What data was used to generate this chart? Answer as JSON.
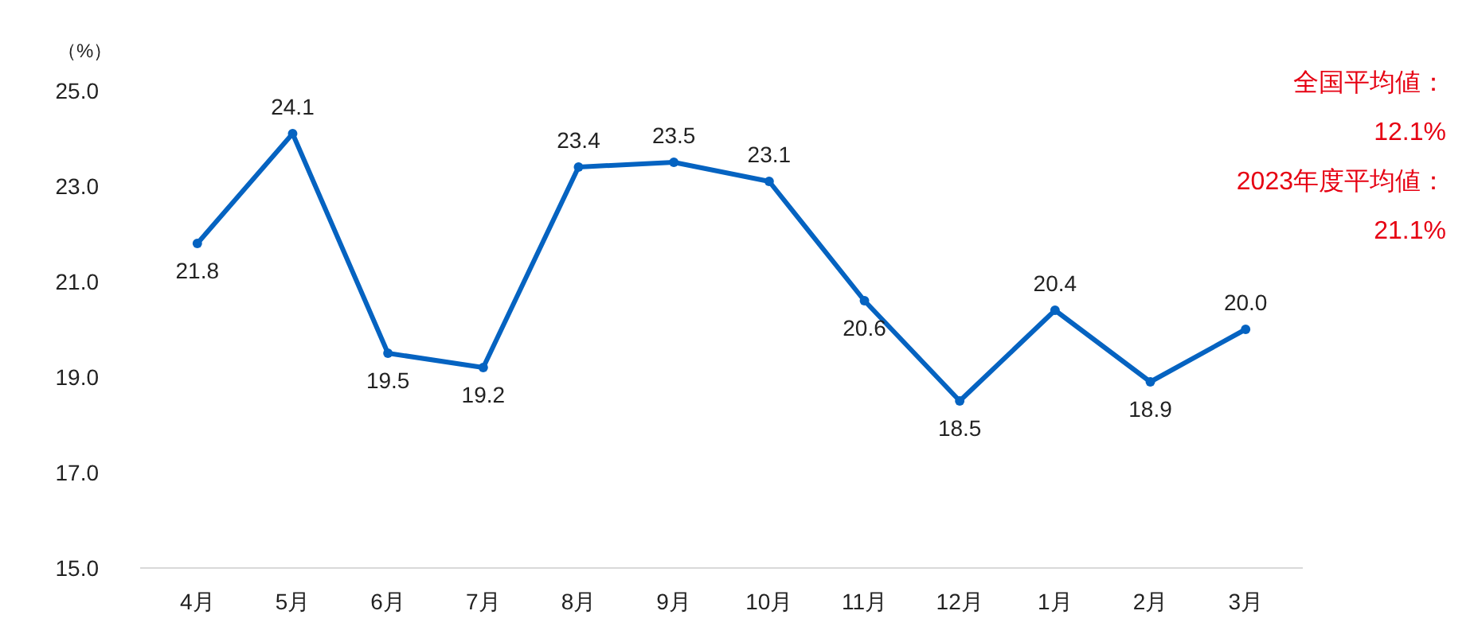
{
  "chart_data": {
    "type": "line",
    "ylabel": "（%）",
    "categories": [
      "4月",
      "5月",
      "6月",
      "7月",
      "8月",
      "9月",
      "10月",
      "11月",
      "12月",
      "1月",
      "2月",
      "3月"
    ],
    "series": [
      {
        "color": "#0563c1",
        "values": [
          21.8,
          24.1,
          19.5,
          19.2,
          23.4,
          23.5,
          23.1,
          20.6,
          18.5,
          20.4,
          18.9,
          20.0
        ],
        "value_labels": [
          "21.8",
          "24.1",
          "19.5",
          "19.2",
          "23.4",
          "23.5",
          "23.1",
          "20.6",
          "18.5",
          "20.4",
          "18.9",
          "20.0"
        ]
      }
    ],
    "ylim": [
      15,
      25
    ],
    "yticks": [
      {
        "value": 15,
        "label": "15.0"
      },
      {
        "value": 17,
        "label": "17.0"
      },
      {
        "value": 19,
        "label": "19.0"
      },
      {
        "value": 21,
        "label": "21.0"
      },
      {
        "value": 23,
        "label": "23.0"
      },
      {
        "value": 25,
        "label": "25.0"
      }
    ],
    "grid": false,
    "marker": "circle",
    "line_style": "solid",
    "annotations": [
      "全国平均値：",
      "12.1%",
      "2023年度平均値：",
      "21.1%"
    ]
  }
}
